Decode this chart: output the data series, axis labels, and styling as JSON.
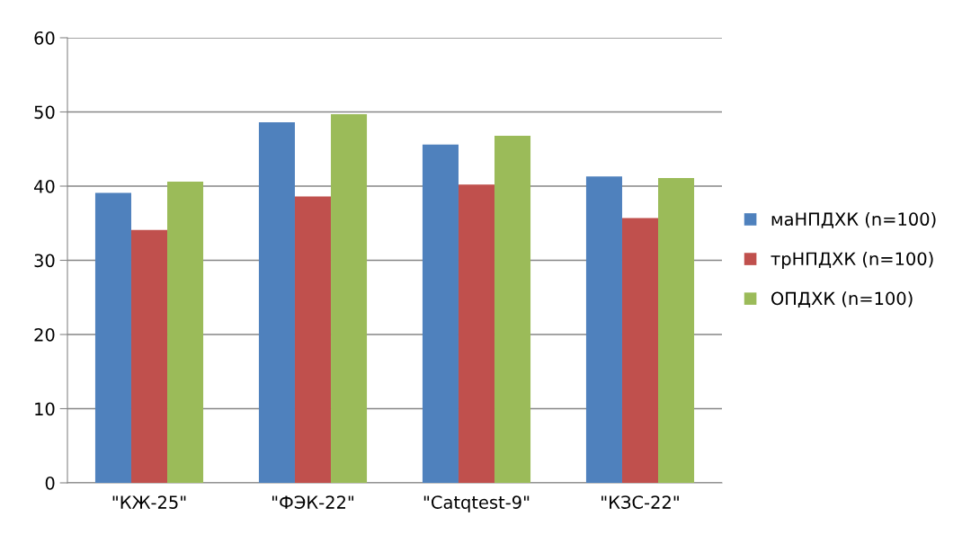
{
  "chart_data": {
    "type": "bar",
    "categories": [
      "\"КЖ-25\"",
      "\"ФЭК-22\"",
      "\"Catqtest-9\"",
      "\"КЗС-22\""
    ],
    "series": [
      {
        "name": "маНПДХК (n=100)",
        "color": "#4f81bd",
        "values": [
          39.1,
          48.6,
          45.6,
          41.3
        ]
      },
      {
        "name": "трНПДХК (n=100)",
        "color": "#c0504d",
        "values": [
          34.1,
          38.6,
          40.2,
          35.7
        ]
      },
      {
        "name": "ОПДХК (n=100)",
        "color": "#9bbb59",
        "values": [
          40.6,
          49.7,
          46.8,
          41.1
        ]
      }
    ],
    "ylim": [
      0,
      60
    ],
    "yticks": [
      0,
      10,
      20,
      30,
      40,
      50,
      60
    ],
    "grid": "y",
    "legend": "right"
  }
}
